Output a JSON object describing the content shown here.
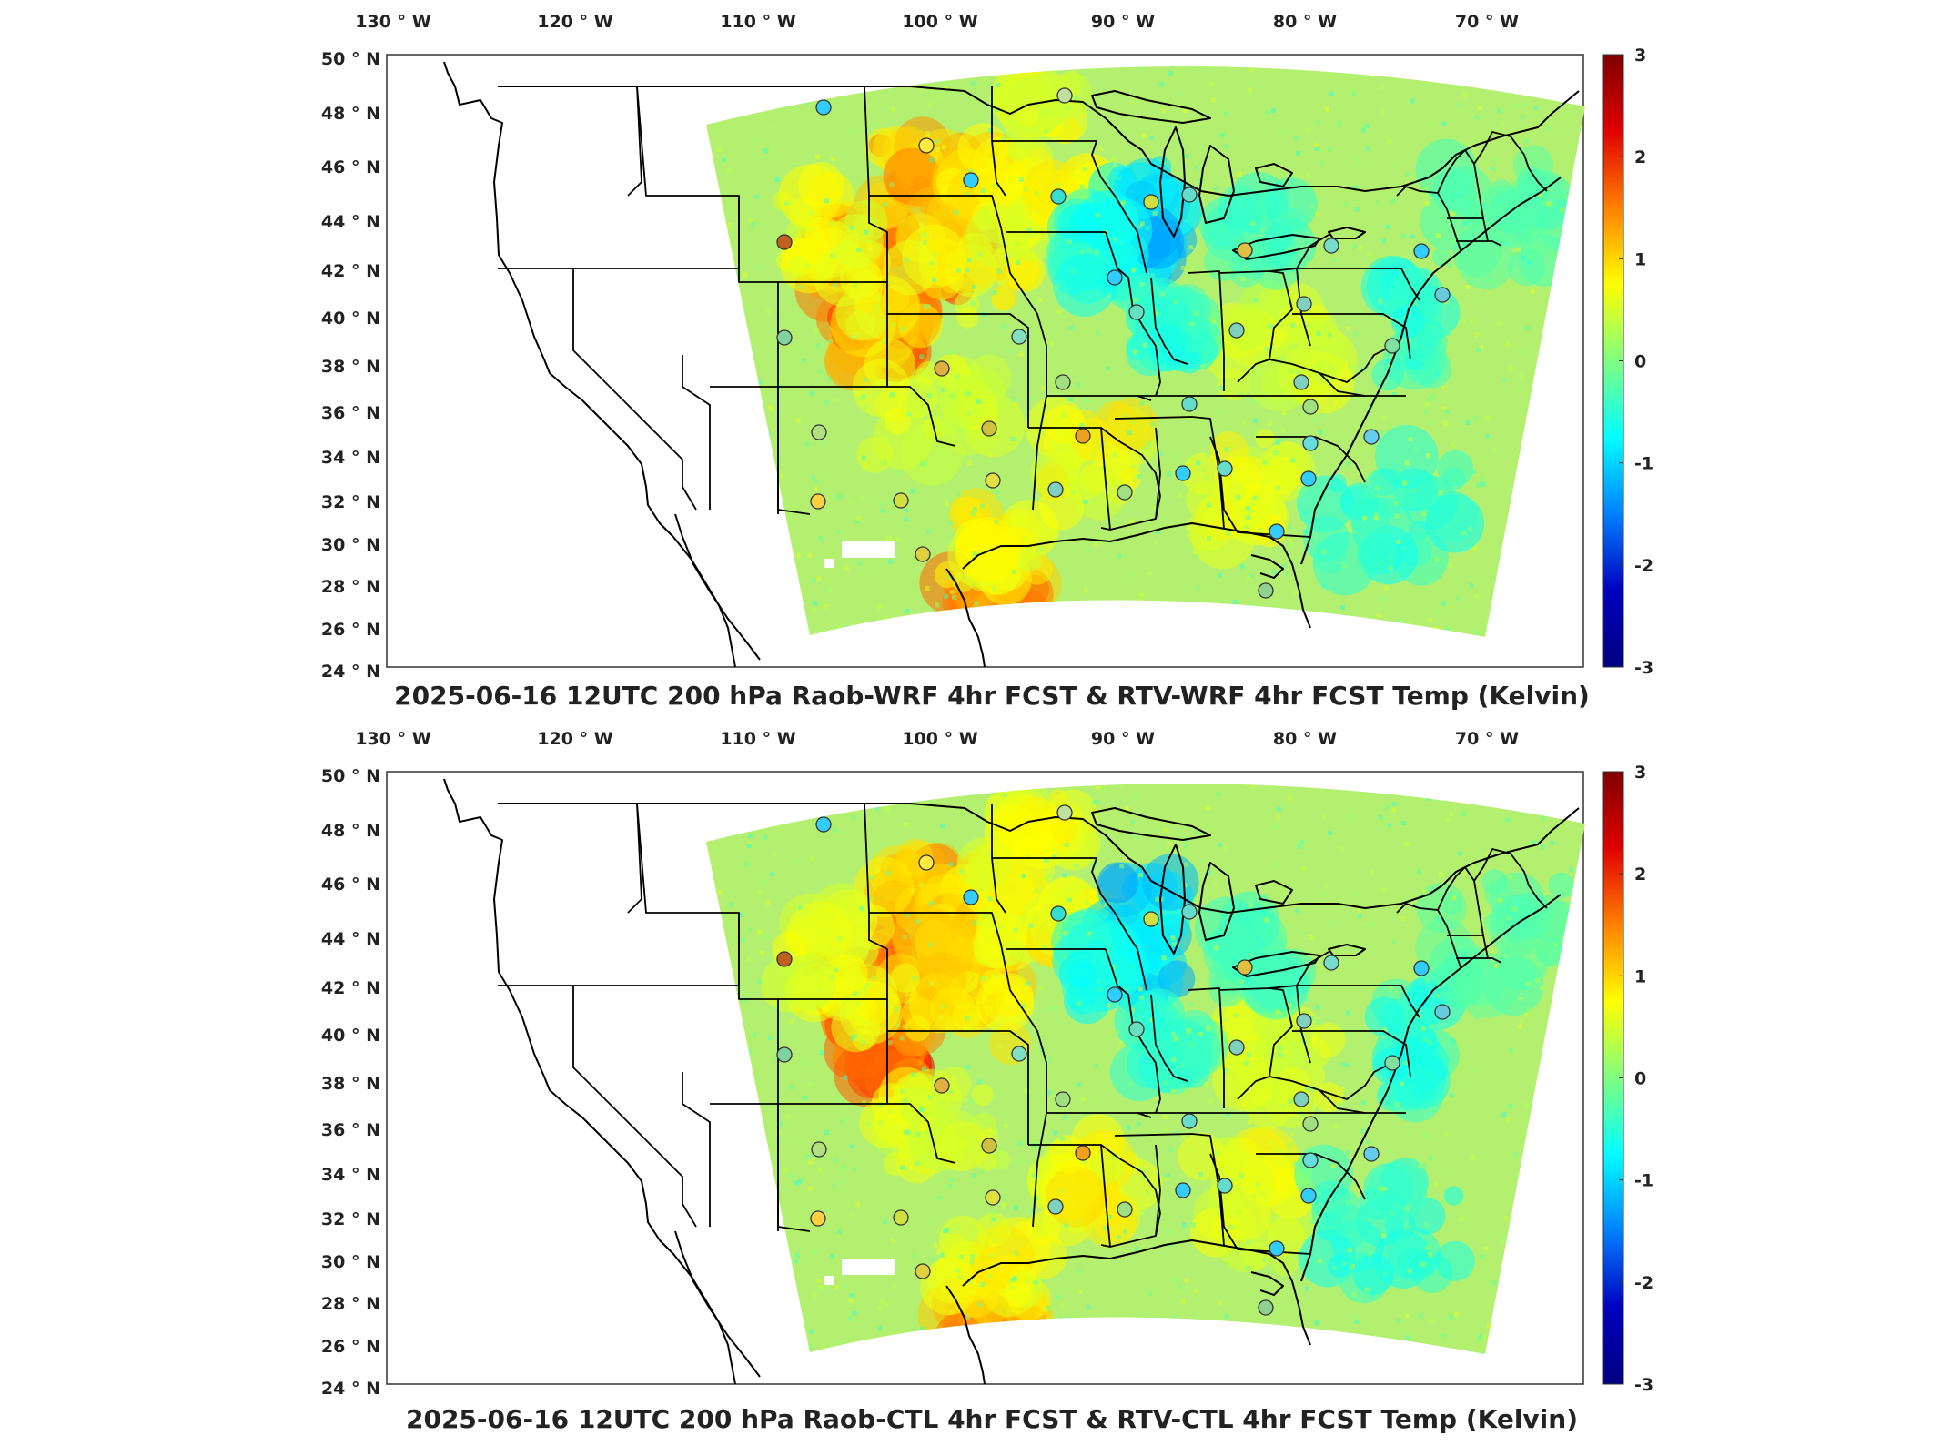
{
  "lon_labels": [
    "130",
    "120",
    "110",
    "100",
    "90",
    "80",
    "70"
  ],
  "lon_suffix": "W",
  "lat_labels": [
    "50",
    "48",
    "46",
    "44",
    "42",
    "40",
    "38",
    "36",
    "34",
    "32",
    "30",
    "28",
    "26",
    "24"
  ],
  "lat_suffix": "N",
  "degree_symbol": "°",
  "colorbar": {
    "ticks": [
      "3",
      "2",
      "1",
      "0",
      "-1",
      "-2",
      "-3"
    ],
    "colors": [
      "#7f0000",
      "#e00000",
      "#ff8000",
      "#ffff00",
      "#80ff80",
      "#00ffff",
      "#0080ff",
      "#0000c0",
      "#000080"
    ]
  },
  "panels": [
    {
      "id": "top",
      "title": "2025-06-16 12UTC 200 hPa Raob-WRF 4hr FCST & RTV-WRF 4hr FCST Temp (Kelvin)"
    },
    {
      "id": "bottom",
      "title": "2025-06-16 12UTC 200 hPa Raob-CTL 4hr FCST & RTV-CTL 4hr FCST Temp (Kelvin)"
    }
  ]
}
